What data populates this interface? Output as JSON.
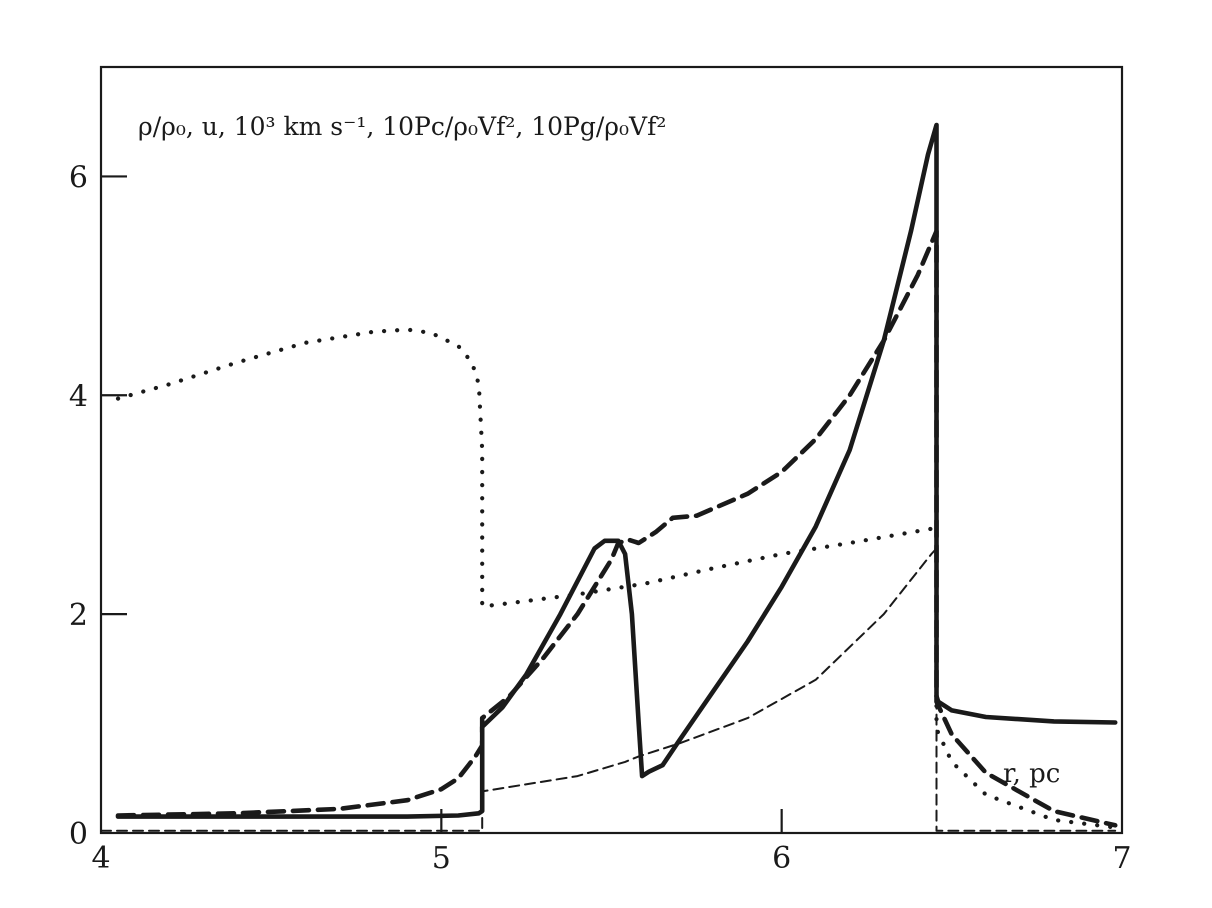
{
  "chart_data": {
    "type": "line",
    "title": "ρ/ρ₀, u, 10³ km s⁻¹, 10Pc/ρ₀Vf², 10Pg/ρ₀Vf²",
    "xlabel": "r, pc",
    "ylabel": "",
    "xlim": [
      4,
      7
    ],
    "ylim": [
      0,
      7
    ],
    "xticks": [
      4,
      5,
      6,
      7
    ],
    "xtick_labels": [
      "4",
      "5",
      "6",
      "7"
    ],
    "yticks": [
      0,
      2,
      4,
      6
    ],
    "ytick_labels": [
      "0",
      "2",
      "4",
      "6"
    ],
    "grid": false,
    "legend": "none",
    "series": [
      {
        "style": "solid-thick",
        "x": [
          4.05,
          4.5,
          4.9,
          5.05,
          5.11,
          5.12,
          5.12,
          5.18,
          5.25,
          5.35,
          5.45,
          5.48,
          5.52,
          5.54,
          5.56,
          5.58,
          5.59,
          5.61,
          5.65,
          5.7,
          5.8,
          5.9,
          6.0,
          6.1,
          6.2,
          6.3,
          6.38,
          6.43,
          6.455,
          6.455,
          6.46,
          6.5,
          6.6,
          6.8,
          6.98
        ],
        "y": [
          0.15,
          0.15,
          0.15,
          0.16,
          0.18,
          0.2,
          0.97,
          1.15,
          1.45,
          2.0,
          2.6,
          2.67,
          2.67,
          2.55,
          2.0,
          1.0,
          0.52,
          0.56,
          0.62,
          0.85,
          1.3,
          1.75,
          2.25,
          2.8,
          3.5,
          4.5,
          5.5,
          6.2,
          6.47,
          1.25,
          1.2,
          1.12,
          1.06,
          1.02,
          1.01
        ]
      },
      {
        "style": "dashed-thick",
        "x": [
          4.05,
          4.4,
          4.7,
          4.9,
          5.0,
          5.05,
          5.1,
          5.12,
          5.12,
          5.2,
          5.3,
          5.4,
          5.5,
          5.52,
          5.55,
          5.58,
          5.63,
          5.68,
          5.75,
          5.9,
          6.0,
          6.1,
          6.2,
          6.3,
          6.4,
          6.455,
          6.455,
          6.5,
          6.6,
          6.8,
          6.98
        ],
        "y": [
          0.16,
          0.18,
          0.22,
          0.3,
          0.4,
          0.5,
          0.7,
          0.8,
          1.05,
          1.25,
          1.6,
          2.0,
          2.5,
          2.65,
          2.68,
          2.65,
          2.75,
          2.88,
          2.9,
          3.1,
          3.3,
          3.6,
          4.0,
          4.5,
          5.1,
          5.5,
          1.2,
          0.9,
          0.55,
          0.2,
          0.07
        ]
      },
      {
        "style": "dotted",
        "x": [
          4.05,
          4.2,
          4.4,
          4.6,
          4.8,
          4.9,
          4.97,
          5.05,
          5.09,
          5.11,
          5.12,
          5.12,
          5.2,
          5.4,
          5.6,
          5.8,
          6.0,
          6.2,
          6.44,
          6.455,
          6.455,
          6.5,
          6.6,
          6.8,
          6.98
        ],
        "y": [
          3.97,
          4.1,
          4.3,
          4.48,
          4.58,
          4.6,
          4.57,
          4.45,
          4.3,
          4.1,
          3.5,
          2.07,
          2.1,
          2.18,
          2.28,
          2.42,
          2.55,
          2.65,
          2.78,
          2.78,
          0.95,
          0.65,
          0.35,
          0.12,
          0.05
        ]
      },
      {
        "style": "dashed-thin",
        "x": [
          4.0,
          4.5,
          5.0,
          5.11,
          5.12,
          5.12,
          5.2,
          5.4,
          5.54,
          5.58,
          5.6,
          5.7,
          5.9,
          6.1,
          6.3,
          6.44,
          6.455,
          6.455,
          6.5,
          6.6,
          6.8,
          6.98
        ],
        "y": [
          0.02,
          0.02,
          0.02,
          0.02,
          0.02,
          0.38,
          0.42,
          0.52,
          0.65,
          0.7,
          0.72,
          0.82,
          1.05,
          1.4,
          2.0,
          2.55,
          2.6,
          0.02,
          0.02,
          0.02,
          0.02,
          0.02
        ]
      }
    ]
  }
}
